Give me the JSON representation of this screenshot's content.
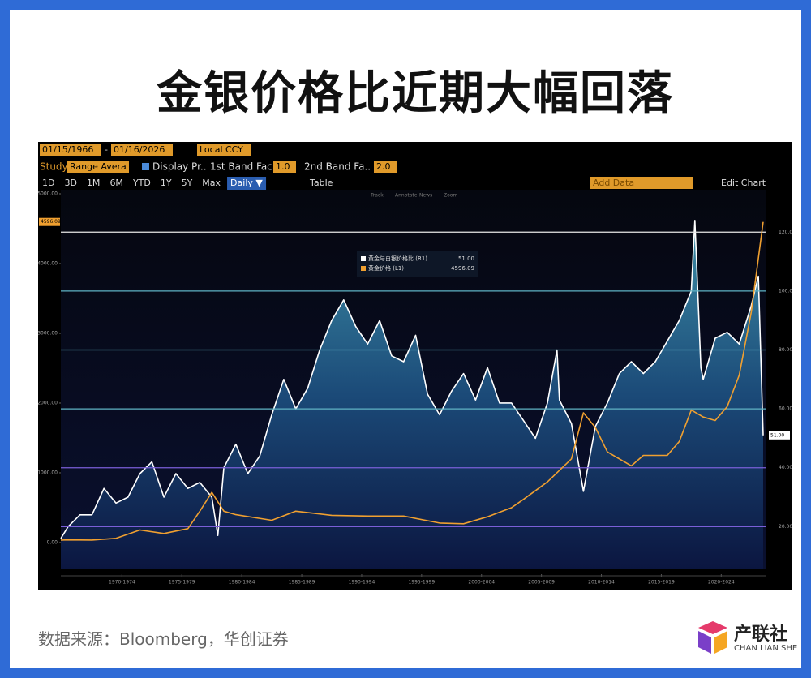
{
  "title": "金银价格比近期大幅回落",
  "toolbar": {
    "start_date": "01/15/1966",
    "end_date": "01/16/2026",
    "currency": "Local CCY",
    "study_label": "Study",
    "study": "Range Avera",
    "display": "Display Pr..",
    "band1_label": "1st Band Fac..",
    "band1": "1.0",
    "band2_label": "2nd Band Fa..",
    "band2": "2.0",
    "periods": [
      "1D",
      "3D",
      "1M",
      "6M",
      "YTD",
      "1Y",
      "5Y",
      "Max"
    ],
    "frequency": "Daily ▼",
    "table": "Table",
    "add_data": "Add Data",
    "edit_chart": "Edit Chart",
    "tools": [
      "Track",
      "Annotate",
      "News",
      "Zoom"
    ]
  },
  "chart_data": {
    "type": "line",
    "xlim": [
      1967.4,
      2026.2
    ],
    "xticks": [
      {
        "value": 1972.5,
        "label": "1970-1974"
      },
      {
        "value": 1977.5,
        "label": "1975-1979"
      },
      {
        "value": 1982.5,
        "label": "1980-1984"
      },
      {
        "value": 1987.5,
        "label": "1985-1989"
      },
      {
        "value": 1992.5,
        "label": "1990-1994"
      },
      {
        "value": 1997.5,
        "label": "1995-1999"
      },
      {
        "value": 2002.5,
        "label": "2000-2004"
      },
      {
        "value": 2007.5,
        "label": "2005-2009"
      },
      {
        "value": 2012.5,
        "label": "2010-2014"
      },
      {
        "value": 2017.5,
        "label": "2015-2019"
      },
      {
        "value": 2022.5,
        "label": "2020-2024"
      }
    ],
    "ylim": [
      -384,
      5058
    ],
    "yticks": [
      {
        "value": 0,
        "label": "0.00"
      },
      {
        "value": 1000,
        "label": "1000.00"
      },
      {
        "value": 2000,
        "label": "2000.00"
      },
      {
        "value": 3000,
        "label": "3000.00"
      },
      {
        "value": 4000,
        "label": "4000.00"
      },
      {
        "value": 5000,
        "label": "5000.00"
      }
    ],
    "y2lim": [
      5.5,
      134.4
    ],
    "y2ticks": [
      {
        "value": 20,
        "label": "20.00"
      },
      {
        "value": 40,
        "label": "40.00"
      },
      {
        "value": 60,
        "label": "60.00"
      },
      {
        "value": 80,
        "label": "80.00"
      },
      {
        "value": 100,
        "label": "100.00"
      },
      {
        "value": 120,
        "label": "120.00"
      }
    ],
    "y2grid_colors": [
      "#7a5fd8",
      "#7a5fd8",
      "#5fb3c4",
      "#5fb3c4",
      "#5fb3c4",
      "#e8e8e8"
    ],
    "series": [
      {
        "name": "黄金与白银价格比 (R1)",
        "color": "#ffffff",
        "axis": "y2",
        "area": true,
        "legend_value": {
          "value": 51,
          "label": "51.00"
        },
        "x": [
          1967.4,
          1968,
          1969,
          1970,
          1971,
          1972,
          1973,
          1974,
          1975,
          1976,
          1977,
          1978,
          1979,
          1980,
          1980.5,
          1981,
          1982,
          1983,
          1984,
          1985,
          1986,
          1987,
          1988,
          1989,
          1990,
          1991,
          1992,
          1993,
          1994,
          1995,
          1996,
          1997,
          1998,
          1999,
          2000,
          2001,
          2002,
          2003,
          2004,
          2005,
          2006,
          2007,
          2008,
          2008.8,
          2009,
          2010,
          2011,
          2012,
          2013,
          2014,
          2015,
          2016,
          2017,
          2018,
          2019,
          2020,
          2020.3,
          2020.8,
          2021,
          2022,
          2023,
          2024,
          2025,
          2025.6,
          2026
        ],
        "values": [
          16,
          20,
          24,
          24,
          33,
          28,
          30,
          38,
          42,
          30,
          38,
          33,
          35,
          30,
          17,
          40,
          48,
          38,
          44,
          58,
          70,
          60,
          67,
          80,
          90,
          97,
          88,
          82,
          90,
          78,
          76,
          85,
          65,
          58,
          66,
          72,
          63,
          74,
          62,
          62,
          56,
          50,
          62,
          80,
          63,
          55,
          32,
          54,
          62,
          72,
          76,
          72,
          76,
          83,
          90,
          100,
          124,
          74,
          70,
          84,
          86,
          82,
          95,
          105,
          51
        ]
      },
      {
        "name": "黄金价格 (L1)",
        "color": "#f0a030",
        "axis": "y",
        "area": false,
        "legend_value": {
          "value": 4596.09,
          "label": "4596.09"
        },
        "x": [
          1967.4,
          1968,
          1970,
          1972,
          1974,
          1976,
          1978,
          1979,
          1980,
          1981,
          1982,
          1985,
          1987,
          1990,
          1993,
          1996,
          1999,
          2001,
          2003,
          2005,
          2006,
          2008,
          2010,
          2011,
          2012,
          2013,
          2015,
          2016,
          2018,
          2019,
          2020,
          2021,
          2022,
          2023,
          2024,
          2025,
          2026
        ],
        "values": [
          35,
          38,
          36,
          60,
          180,
          130,
          200,
          450,
          720,
          450,
          400,
          320,
          450,
          390,
          380,
          380,
          280,
          270,
          370,
          500,
          620,
          870,
          1200,
          1860,
          1650,
          1300,
          1100,
          1250,
          1250,
          1450,
          1900,
          1800,
          1750,
          1950,
          2400,
          3300,
          4596.09
        ]
      }
    ]
  },
  "source": "数据来源：Bloomberg，华创证券",
  "logo": {
    "name": "产联社",
    "subtitle": "CHAN LIAN SHE"
  }
}
